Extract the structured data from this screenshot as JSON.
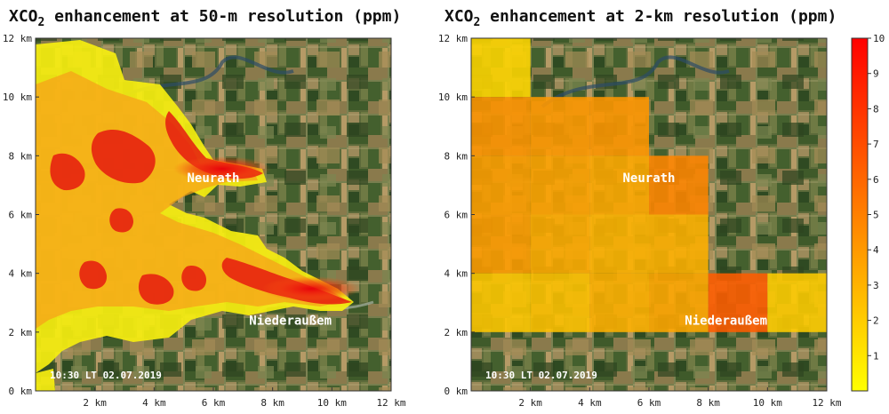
{
  "chart_data": [
    {
      "type": "heatmap",
      "title": "XCO2 enhancement at 50-m resolution (ppm)",
      "title_main": "XCO",
      "title_sub": "2",
      "title_rest": " enhancement at 50-m resolution (ppm)",
      "x_ticks": [
        "2 km",
        "4 km",
        "6 km",
        "8 km",
        "10 km",
        "12 km"
      ],
      "y_ticks": [
        "0 km",
        "2 km",
        "4 km",
        "6 km",
        "8 km",
        "10 km",
        "12 km"
      ],
      "xlim": [
        0,
        12
      ],
      "ylim": [
        0,
        12
      ],
      "timestamp": "10:30 LT 02.07.2019",
      "annotations": [
        {
          "label": "Neurath",
          "x": 6.0,
          "y": 7.1
        },
        {
          "label": "Niederaußem",
          "x": 8.6,
          "y": 2.25
        }
      ]
    },
    {
      "type": "heatmap",
      "title": "XCO2 enhancement at 2-km resolution (ppm)",
      "title_main": "XCO",
      "title_sub": "2",
      "title_rest": " enhancement at 2-km resolution (ppm)",
      "x_ticks": [
        "2 km",
        "4 km",
        "6 km",
        "8 km",
        "10 km",
        "12 km"
      ],
      "y_ticks": [
        "0 km",
        "2 km",
        "4 km",
        "6 km",
        "8 km",
        "10 km",
        "12 km"
      ],
      "xlim": [
        0,
        12
      ],
      "ylim": [
        0,
        12
      ],
      "timestamp": "10:30 LT 02.07.2019",
      "annotations": [
        {
          "label": "Neurath",
          "x": 6.0,
          "y": 7.1
        },
        {
          "label": "Niederaußem",
          "x": 8.6,
          "y": 2.25
        }
      ],
      "cells": [
        {
          "x0": 0,
          "y0": 10,
          "value": 1.6
        },
        {
          "x0": 0,
          "y0": 8,
          "value": 4.2
        },
        {
          "x0": 2,
          "y0": 8,
          "value": 4.0
        },
        {
          "x0": 4,
          "y0": 8,
          "value": 4.1
        },
        {
          "x0": 0,
          "y0": 6,
          "value": 3.8
        },
        {
          "x0": 2,
          "y0": 6,
          "value": 3.6
        },
        {
          "x0": 4,
          "y0": 6,
          "value": 3.4
        },
        {
          "x0": 6,
          "y0": 6,
          "value": 4.8
        },
        {
          "x0": 0,
          "y0": 4,
          "value": 3.9
        },
        {
          "x0": 2,
          "y0": 4,
          "value": 3.3
        },
        {
          "x0": 4,
          "y0": 4,
          "value": 3.0
        },
        {
          "x0": 6,
          "y0": 4,
          "value": 3.1
        },
        {
          "x0": 0,
          "y0": 2,
          "value": 2.2
        },
        {
          "x0": 2,
          "y0": 2,
          "value": 2.4
        },
        {
          "x0": 4,
          "y0": 2,
          "value": 3.1
        },
        {
          "x0": 6,
          "y0": 2,
          "value": 3.5
        },
        {
          "x0": 8,
          "y0": 2,
          "value": 6.4
        },
        {
          "x0": 10,
          "y0": 2,
          "value": 2.0
        }
      ]
    }
  ],
  "colorbar": {
    "min": 0,
    "max": 10,
    "ticks": [
      "1",
      "2",
      "3",
      "4",
      "5",
      "6",
      "7",
      "8",
      "9",
      "10"
    ],
    "colors": [
      "#ffff00",
      "#ff0000"
    ]
  }
}
